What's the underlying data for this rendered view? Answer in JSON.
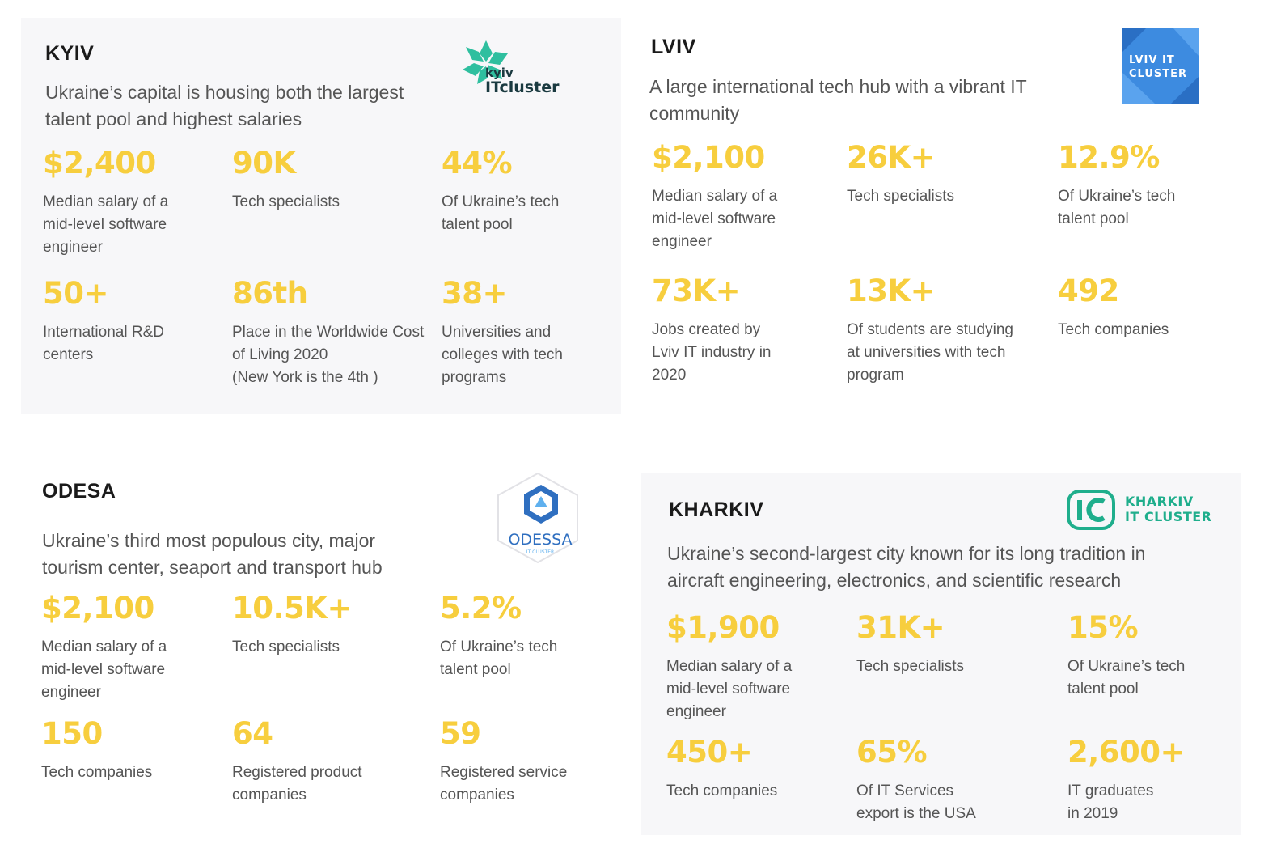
{
  "accent_color": "#f7ce3e",
  "cards": {
    "kyiv": {
      "city": "KYIV",
      "description_lines": [
        "Ukraine’s capital is housing both the largest",
        "talent pool and highest salaries"
      ],
      "logo": {
        "text_top": "kyiv",
        "text_bottom": "ITcluster",
        "icon": "star-cluster-icon"
      },
      "stats": [
        {
          "value": "$2,400",
          "label_lines": [
            "Median salary of a",
            "mid-level software",
            "engineer"
          ]
        },
        {
          "value": "90K",
          "label_lines": [
            "Tech specialists"
          ]
        },
        {
          "value": "44%",
          "label_lines": [
            "Of Ukraine’s tech",
            "talent pool"
          ]
        },
        {
          "value": "50+",
          "label_lines": [
            "International R&D",
            "centers"
          ]
        },
        {
          "value": "86th",
          "label_lines": [
            "Place in the Worldwide Cost",
            "of Living 2020",
            "(New York is the 4th )"
          ]
        },
        {
          "value": "38+",
          "label_lines": [
            "Universities and",
            "colleges with tech",
            "programs"
          ]
        }
      ]
    },
    "lviv": {
      "city": "LVIV",
      "description_lines": [
        "A large international tech hub with a vibrant IT",
        "community"
      ],
      "logo": {
        "text_top": "LVIV IT",
        "text_bottom": "CLUSTER",
        "icon": "lviv-cluster-icon"
      },
      "stats": [
        {
          "value": "$2,100",
          "label_lines": [
            "Median salary of a",
            "mid-level software",
            "engineer"
          ]
        },
        {
          "value": "26K+",
          "label_lines": [
            "Tech specialists"
          ]
        },
        {
          "value": "12.9%",
          "label_lines": [
            "Of Ukraine’s tech",
            "talent pool"
          ]
        },
        {
          "value": "73K+",
          "label_lines": [
            "Jobs created by",
            "Lviv IT industry in",
            "2020"
          ]
        },
        {
          "value": "13K+",
          "label_lines": [
            "Of students are studying",
            "at universities with tech",
            "program"
          ]
        },
        {
          "value": "492",
          "label_lines": [
            "Tech  companies"
          ]
        }
      ]
    },
    "odesa": {
      "city": "ODESA",
      "description_lines": [
        "Ukraine’s third most populous city, major",
        "tourism center, seaport and transport hub"
      ],
      "logo": {
        "text_top": "ODESSA",
        "text_bottom": "IT CLUSTER",
        "icon": "hexagon-cluster-icon"
      },
      "stats": [
        {
          "value": "$2,100",
          "label_lines": [
            "Median salary of a",
            "mid-level software",
            "engineer"
          ]
        },
        {
          "value": "10.5K+",
          "label_lines": [
            "Tech specialists"
          ]
        },
        {
          "value": "5.2%",
          "label_lines": [
            "Of Ukraine’s tech",
            "talent pool"
          ]
        },
        {
          "value": "150",
          "label_lines": [
            "Tech companies"
          ]
        },
        {
          "value": "64",
          "label_lines": [
            "Registered product",
            "companies"
          ]
        },
        {
          "value": "59",
          "label_lines": [
            "Registered service",
            "companies"
          ]
        }
      ]
    },
    "kharkiv": {
      "city": "KHARKIV",
      "description_lines": [
        "Ukraine’s second-largest city known for its long tradition in",
        "aircraft engineering, electronics, and scientific research"
      ],
      "logo": {
        "text_top": "KHARKIV",
        "text_bottom": "IT CLUSTER",
        "icon": "ic-monogram-icon"
      },
      "stats": [
        {
          "value": "$1,900",
          "label_lines": [
            "Median salary of a",
            "mid-level software",
            "engineer"
          ]
        },
        {
          "value": "31K+",
          "label_lines": [
            "Tech specialists"
          ]
        },
        {
          "value": "15%",
          "label_lines": [
            "Of Ukraine’s tech",
            "talent pool"
          ]
        },
        {
          "value": "450+",
          "label_lines": [
            "Tech companies"
          ]
        },
        {
          "value": "65%",
          "label_lines": [
            "Of IT Services",
            "export is the USA"
          ]
        },
        {
          "value": "2,600+",
          "label_lines": [
            "IT graduates",
            "in 2019"
          ]
        }
      ]
    }
  }
}
